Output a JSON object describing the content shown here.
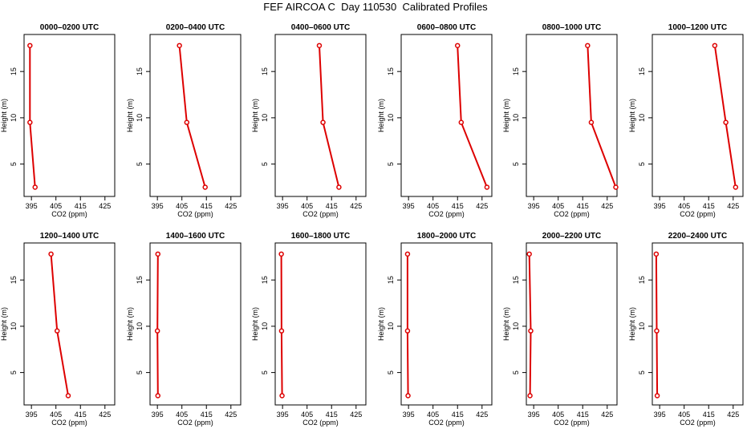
{
  "figure_title": "FEF AIRCOA C  Day 110530  Calibrated Profiles",
  "colors": {
    "line": "#dd0000",
    "axes": "#000000",
    "background": "#ffffff"
  },
  "chart_data": [
    {
      "type": "line",
      "title": "0000–0200 UTC",
      "xlabel": "CO2 (ppm)",
      "ylabel": "Height (m)",
      "x_ticks": [
        395,
        405,
        415,
        425
      ],
      "y_ticks": [
        5,
        10,
        15
      ],
      "xlim": [
        392,
        429
      ],
      "ylim": [
        1.5,
        19
      ],
      "series": [
        {
          "points": [
            {
              "x": 396.5,
              "y": 2.5
            },
            {
              "x": 394.4,
              "y": 9.5
            },
            {
              "x": 394.4,
              "y": 17.8
            }
          ]
        }
      ]
    },
    {
      "type": "line",
      "title": "0200–0400 UTC",
      "xlabel": "CO2 (ppm)",
      "ylabel": "Height (m)",
      "x_ticks": [
        395,
        405,
        415,
        425
      ],
      "y_ticks": [
        5,
        10,
        15
      ],
      "xlim": [
        392,
        429
      ],
      "ylim": [
        1.5,
        19
      ],
      "series": [
        {
          "points": [
            {
              "x": 414.5,
              "y": 2.5
            },
            {
              "x": 407.0,
              "y": 9.5
            },
            {
              "x": 404.0,
              "y": 17.8
            }
          ]
        }
      ]
    },
    {
      "type": "line",
      "title": "0400–0600 UTC",
      "xlabel": "CO2 (ppm)",
      "ylabel": "Height (m)",
      "x_ticks": [
        395,
        405,
        415,
        425
      ],
      "y_ticks": [
        5,
        10,
        15
      ],
      "xlim": [
        392,
        429
      ],
      "ylim": [
        1.5,
        19
      ],
      "series": [
        {
          "points": [
            {
              "x": 418.0,
              "y": 2.5
            },
            {
              "x": 411.5,
              "y": 9.5
            },
            {
              "x": 410.0,
              "y": 17.8
            }
          ]
        }
      ]
    },
    {
      "type": "line",
      "title": "0600–0800 UTC",
      "xlabel": "CO2 (ppm)",
      "ylabel": "Height (m)",
      "x_ticks": [
        395,
        405,
        415,
        425
      ],
      "y_ticks": [
        5,
        10,
        15
      ],
      "xlim": [
        392,
        429
      ],
      "ylim": [
        1.5,
        19
      ],
      "series": [
        {
          "points": [
            {
              "x": 427.0,
              "y": 2.5
            },
            {
              "x": 416.5,
              "y": 9.5
            },
            {
              "x": 415.0,
              "y": 17.8
            }
          ]
        }
      ]
    },
    {
      "type": "line",
      "title": "0800–1000 UTC",
      "xlabel": "CO2 (ppm)",
      "ylabel": "Height (m)",
      "x_ticks": [
        395,
        405,
        415,
        425
      ],
      "y_ticks": [
        5,
        10,
        15
      ],
      "xlim": [
        392,
        429
      ],
      "ylim": [
        1.5,
        19
      ],
      "series": [
        {
          "points": [
            {
              "x": 428.5,
              "y": 2.5
            },
            {
              "x": 418.5,
              "y": 9.5
            },
            {
              "x": 417.0,
              "y": 17.8
            }
          ]
        }
      ]
    },
    {
      "type": "line",
      "title": "1000–1200 UTC",
      "xlabel": "CO2 (ppm)",
      "ylabel": "Height (m)",
      "x_ticks": [
        395,
        405,
        415,
        425
      ],
      "y_ticks": [
        5,
        10,
        15
      ],
      "xlim": [
        392,
        429
      ],
      "ylim": [
        1.5,
        19
      ],
      "series": [
        {
          "points": [
            {
              "x": 426.0,
              "y": 2.5
            },
            {
              "x": 422.0,
              "y": 9.5
            },
            {
              "x": 417.5,
              "y": 17.8
            }
          ]
        }
      ]
    },
    {
      "type": "line",
      "title": "1200–1400 UTC",
      "xlabel": "CO2 (ppm)",
      "ylabel": "Height (m)",
      "x_ticks": [
        395,
        405,
        415,
        425
      ],
      "y_ticks": [
        5,
        10,
        15
      ],
      "xlim": [
        392,
        429
      ],
      "ylim": [
        1.5,
        19
      ],
      "series": [
        {
          "points": [
            {
              "x": 410.0,
              "y": 2.5
            },
            {
              "x": 405.5,
              "y": 9.5
            },
            {
              "x": 403.0,
              "y": 17.8
            }
          ]
        }
      ]
    },
    {
      "type": "line",
      "title": "1400–1600 UTC",
      "xlabel": "CO2 (ppm)",
      "ylabel": "Height (m)",
      "x_ticks": [
        395,
        405,
        415,
        425
      ],
      "y_ticks": [
        5,
        10,
        15
      ],
      "xlim": [
        392,
        429
      ],
      "ylim": [
        1.5,
        19
      ],
      "series": [
        {
          "points": [
            {
              "x": 395.2,
              "y": 2.5
            },
            {
              "x": 395.0,
              "y": 9.5
            },
            {
              "x": 395.2,
              "y": 17.8
            }
          ]
        }
      ]
    },
    {
      "type": "line",
      "title": "1600–1800 UTC",
      "xlabel": "CO2 (ppm)",
      "ylabel": "Height (m)",
      "x_ticks": [
        395,
        405,
        415,
        425
      ],
      "y_ticks": [
        5,
        10,
        15
      ],
      "xlim": [
        392,
        429
      ],
      "ylim": [
        1.5,
        19
      ],
      "series": [
        {
          "points": [
            {
              "x": 394.8,
              "y": 2.5
            },
            {
              "x": 394.6,
              "y": 9.5
            },
            {
              "x": 394.5,
              "y": 17.8
            }
          ]
        }
      ]
    },
    {
      "type": "line",
      "title": "1800–2000 UTC",
      "xlabel": "CO2 (ppm)",
      "ylabel": "Height (m)",
      "x_ticks": [
        395,
        405,
        415,
        425
      ],
      "y_ticks": [
        5,
        10,
        15
      ],
      "xlim": [
        392,
        429
      ],
      "ylim": [
        1.5,
        19
      ],
      "series": [
        {
          "points": [
            {
              "x": 394.8,
              "y": 2.5
            },
            {
              "x": 394.6,
              "y": 9.5
            },
            {
              "x": 394.6,
              "y": 17.8
            }
          ]
        }
      ]
    },
    {
      "type": "line",
      "title": "2000–2200 UTC",
      "xlabel": "CO2 (ppm)",
      "ylabel": "Height (m)",
      "x_ticks": [
        395,
        405,
        415,
        425
      ],
      "y_ticks": [
        5,
        10,
        15
      ],
      "xlim": [
        392,
        429
      ],
      "ylim": [
        1.5,
        19
      ],
      "series": [
        {
          "points": [
            {
              "x": 393.5,
              "y": 2.5
            },
            {
              "x": 393.8,
              "y": 9.5
            },
            {
              "x": 393.2,
              "y": 17.8
            }
          ]
        }
      ]
    },
    {
      "type": "line",
      "title": "2200–2400 UTC",
      "xlabel": "CO2 (ppm)",
      "ylabel": "Height (m)",
      "x_ticks": [
        395,
        405,
        415,
        425
      ],
      "y_ticks": [
        5,
        10,
        15
      ],
      "xlim": [
        392,
        429
      ],
      "ylim": [
        1.5,
        19
      ],
      "series": [
        {
          "points": [
            {
              "x": 394.0,
              "y": 2.5
            },
            {
              "x": 393.8,
              "y": 9.5
            },
            {
              "x": 393.6,
              "y": 17.8
            }
          ]
        }
      ]
    }
  ]
}
